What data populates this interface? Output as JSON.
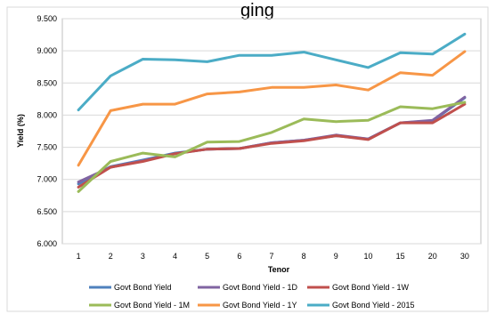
{
  "chart_data": {
    "type": "line",
    "title": "ging",
    "xlabel": "Tenor",
    "ylabel": "Yield (%)",
    "categories": [
      "1",
      "2",
      "3",
      "4",
      "5",
      "6",
      "7",
      "8",
      "9",
      "10",
      "15",
      "20",
      "30"
    ],
    "ylim": [
      6.0,
      9.5
    ],
    "ytick_labels": [
      "6.000",
      "6.500",
      "7.000",
      "7.500",
      "8.000",
      "8.500",
      "9.000",
      "9.500"
    ],
    "grid": true,
    "legend_position": "bottom",
    "series": [
      {
        "name": "Govt Bond Yield",
        "color": "#4f81bd",
        "values": [
          6.93,
          7.2,
          7.3,
          7.41,
          7.47,
          7.48,
          7.57,
          7.61,
          7.68,
          7.63,
          7.88,
          7.91,
          8.27
        ]
      },
      {
        "name": "Govt Bond Yield - 1D",
        "color": "#8064a2",
        "values": [
          6.96,
          7.19,
          7.29,
          7.4,
          7.47,
          7.48,
          7.57,
          7.61,
          7.69,
          7.63,
          7.88,
          7.92,
          8.28
        ]
      },
      {
        "name": "Govt Bond Yield - 1W",
        "color": "#c0504d",
        "values": [
          6.88,
          7.19,
          7.28,
          7.4,
          7.47,
          7.48,
          7.56,
          7.6,
          7.68,
          7.62,
          7.88,
          7.88,
          8.17
        ]
      },
      {
        "name": "Govt Bond Yield - 1M",
        "color": "#9bbb59",
        "values": [
          6.81,
          7.28,
          7.41,
          7.35,
          7.58,
          7.59,
          7.73,
          7.94,
          7.9,
          7.92,
          8.13,
          8.1,
          8.2
        ]
      },
      {
        "name": "Govt Bond Yield - 1Y",
        "color": "#f79646",
        "values": [
          7.22,
          8.07,
          8.17,
          8.17,
          8.33,
          8.36,
          8.43,
          8.43,
          8.47,
          8.39,
          8.66,
          8.62,
          8.99
        ]
      },
      {
        "name": "Govt Bond Yield - 2015",
        "color": "#4bacc6",
        "values": [
          8.08,
          8.61,
          8.87,
          8.86,
          8.83,
          8.93,
          8.93,
          8.98,
          8.86,
          8.74,
          8.97,
          8.95,
          9.26
        ]
      }
    ]
  }
}
